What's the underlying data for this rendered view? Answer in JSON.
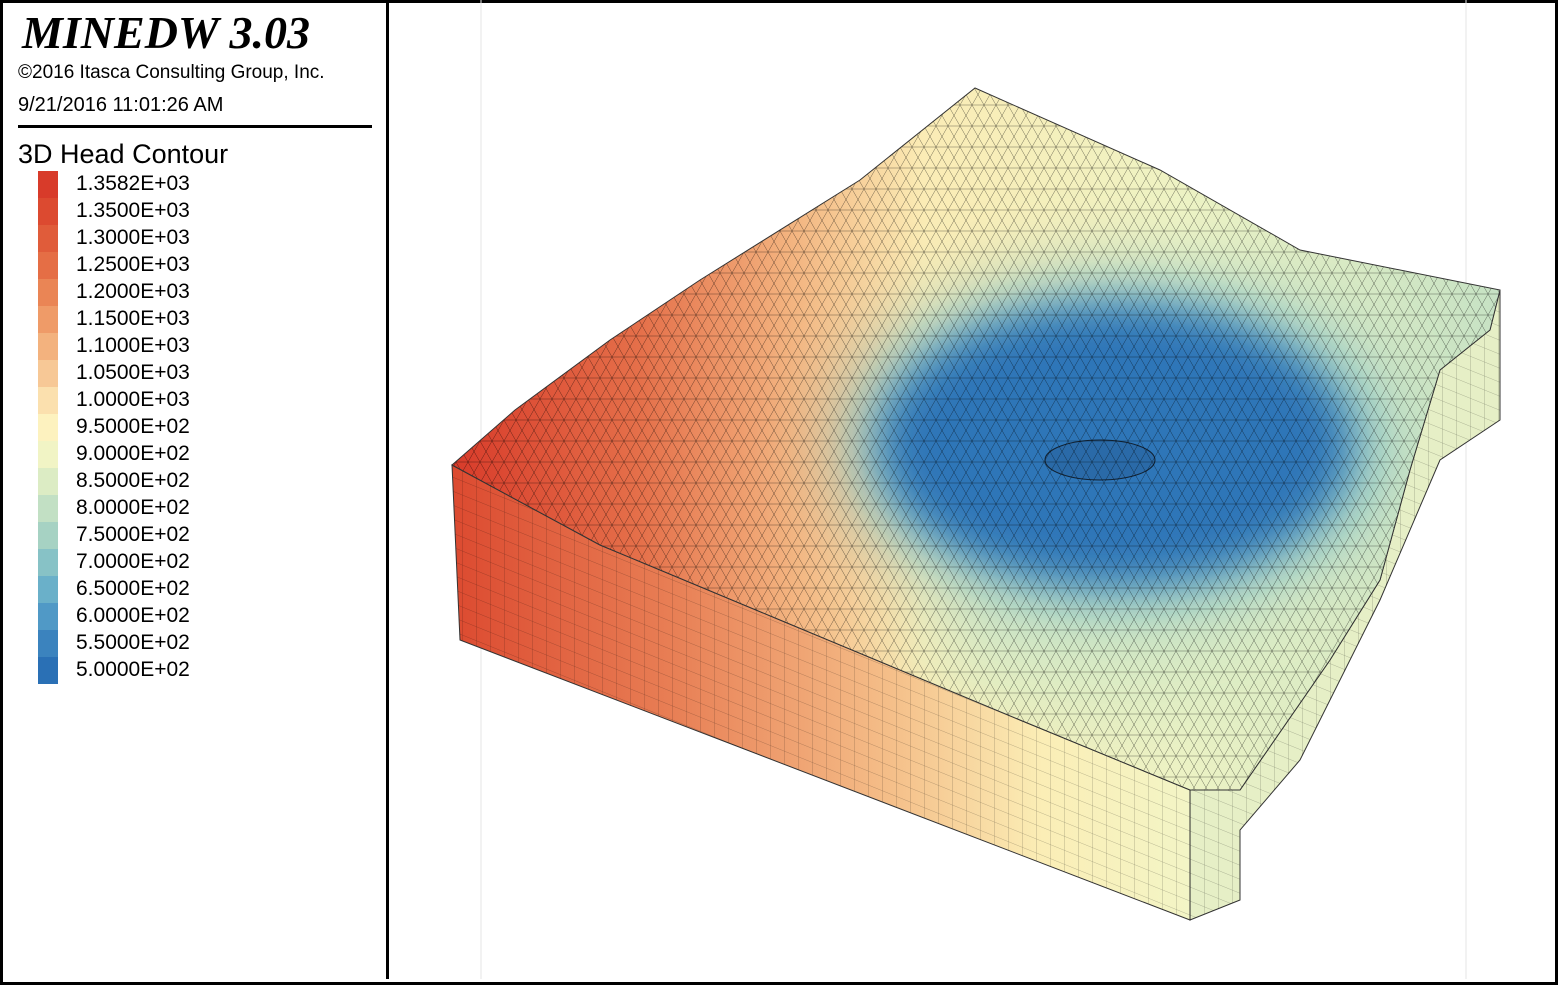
{
  "header": {
    "title": "MINEDW 3.03",
    "copyright": "©2016 Itasca Consulting Group, Inc.",
    "timestamp": "9/21/2016 11:01:26 AM"
  },
  "legend": {
    "title": "3D Head Contour",
    "entries": [
      {
        "label": "1.3582E+03",
        "color": "#d83b2a"
      },
      {
        "label": "1.3500E+03",
        "color": "#dc4a30"
      },
      {
        "label": "1.3000E+03",
        "color": "#e05c3a"
      },
      {
        "label": "1.2500E+03",
        "color": "#e56e45"
      },
      {
        "label": "1.2000E+03",
        "color": "#ea8555"
      },
      {
        "label": "1.1500E+03",
        "color": "#ef9b68"
      },
      {
        "label": "1.1000E+03",
        "color": "#f3b27e"
      },
      {
        "label": "1.0500E+03",
        "color": "#f7c896"
      },
      {
        "label": "1.0000E+03",
        "color": "#fbe0ae"
      },
      {
        "label": "9.5000E+02",
        "color": "#fdf2bf"
      },
      {
        "label": "9.0000E+02",
        "color": "#f1f4c5"
      },
      {
        "label": "8.5000E+02",
        "color": "#dcecc4"
      },
      {
        "label": "8.0000E+02",
        "color": "#c2e0c4"
      },
      {
        "label": "7.5000E+02",
        "color": "#a6d2c3"
      },
      {
        "label": "7.0000E+02",
        "color": "#87c2c6"
      },
      {
        "label": "6.5000E+02",
        "color": "#6ab0c9"
      },
      {
        "label": "6.0000E+02",
        "color": "#5099c6"
      },
      {
        "label": "5.5000E+02",
        "color": "#3b83be"
      },
      {
        "label": "5.0000E+02",
        "color": "#2a70b5"
      }
    ]
  }
}
